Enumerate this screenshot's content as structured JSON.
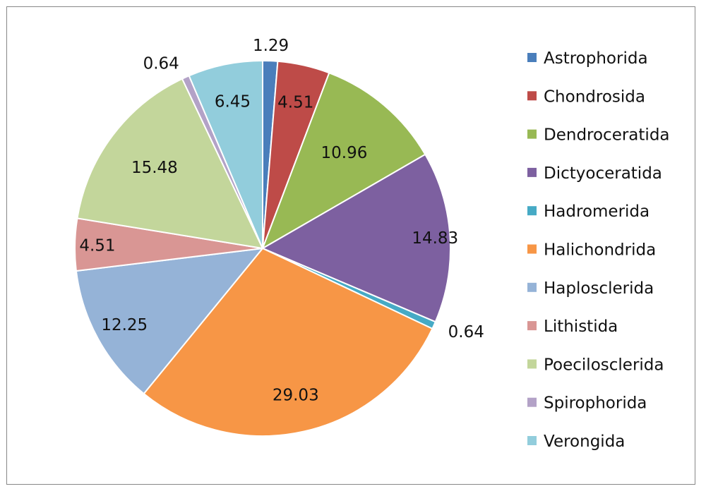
{
  "chart_data": {
    "type": "pie",
    "categories": [
      "Astrophorida",
      "Chondrosida",
      "Dendroceratida",
      "Dictyoceratida",
      "Hadromerida",
      "Halichondrida",
      "Haplosclerida",
      "Lithistida",
      "Poecilosclerida",
      "Spirophorida",
      "Verongida"
    ],
    "values": [
      1.29,
      4.51,
      10.96,
      14.83,
      0.64,
      29.03,
      12.25,
      4.51,
      15.48,
      0.64,
      6.45
    ],
    "data_labels": [
      "1.29",
      "4.51",
      "10.96",
      "14.83",
      "0.64",
      "29.03",
      "12.25",
      "4.51",
      "15.48",
      "0.64",
      "6.45"
    ],
    "colors": [
      "#4a7ebb",
      "#be4b48",
      "#98b954",
      "#7d60a0",
      "#46aac5",
      "#f79646",
      "#95b3d7",
      "#d99694",
      "#c3d69b",
      "#b3a2c7",
      "#92cddc"
    ],
    "legend_position": "right",
    "title": ""
  }
}
